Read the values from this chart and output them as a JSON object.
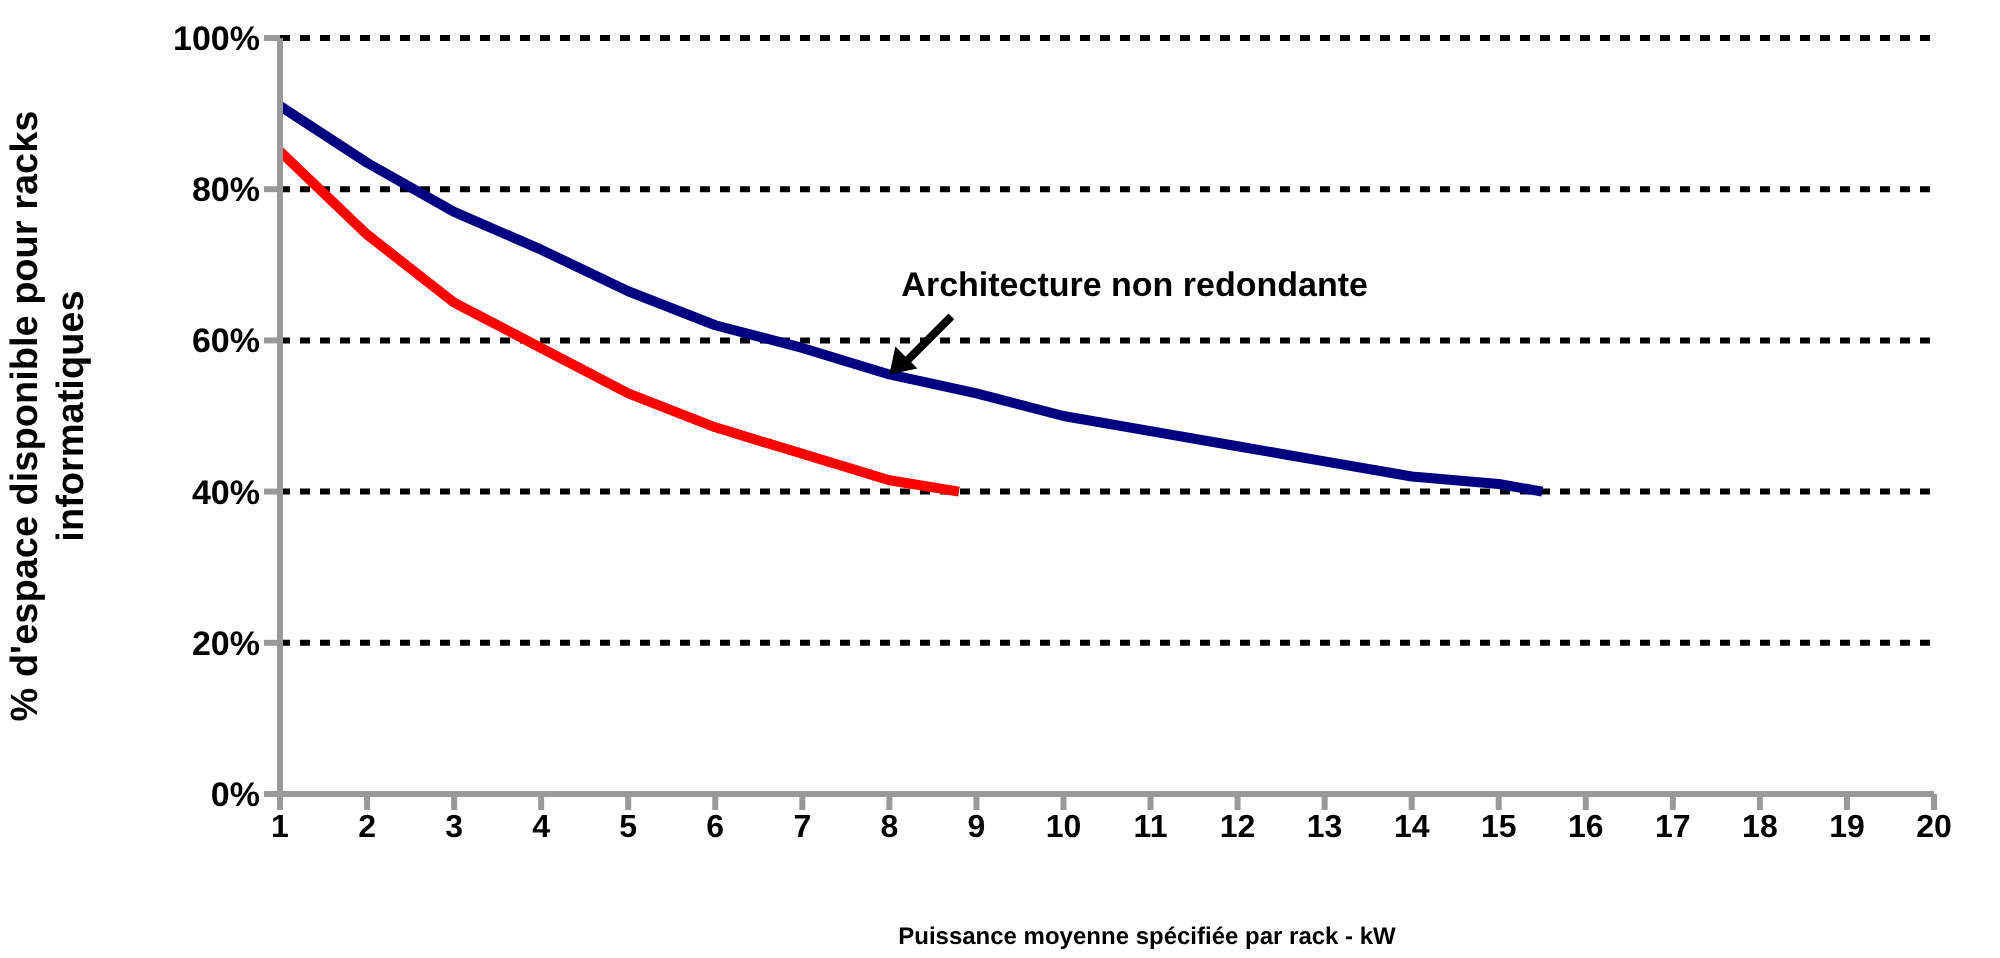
{
  "chart_data": {
    "type": "line",
    "xlabel": "Puissance moyenne spécifiée par rack - kW",
    "ylabel": "% d'espace disponible pour racks\ninformatiques",
    "series": [
      {
        "color": "#000080",
        "x": [
          1,
          2,
          3,
          4,
          5,
          6,
          7,
          8,
          9,
          10,
          11,
          12,
          13,
          14,
          15,
          15.5
        ],
        "values": [
          91,
          83.5,
          77,
          72,
          66.5,
          62,
          59,
          55.5,
          53,
          50,
          48,
          46,
          44,
          42,
          41,
          40
        ]
      },
      {
        "color": "#ff0000",
        "x": [
          1,
          2,
          3,
          4,
          5,
          6,
          7,
          8,
          8.8
        ],
        "values": [
          85,
          74,
          65,
          59,
          53,
          48.5,
          45,
          41.5,
          40
        ]
      }
    ],
    "xlim": [
      1,
      20
    ],
    "xticks": [
      1,
      2,
      3,
      4,
      5,
      6,
      7,
      8,
      9,
      10,
      11,
      12,
      13,
      14,
      15,
      16,
      17,
      18,
      19,
      20
    ],
    "ylim": [
      0,
      100
    ],
    "yticks": [
      {
        "value": 0,
        "label": "0%"
      },
      {
        "value": 20,
        "label": "20%"
      },
      {
        "value": 40,
        "label": "40%"
      },
      {
        "value": 60,
        "label": "60%"
      },
      {
        "value": 80,
        "label": "80%"
      },
      {
        "value": 100,
        "label": "100%"
      }
    ],
    "grid": "y",
    "marker": "none",
    "annotations": [
      {
        "text": "Architecture non redondante",
        "x": 8,
        "y": 55.5
      }
    ]
  }
}
